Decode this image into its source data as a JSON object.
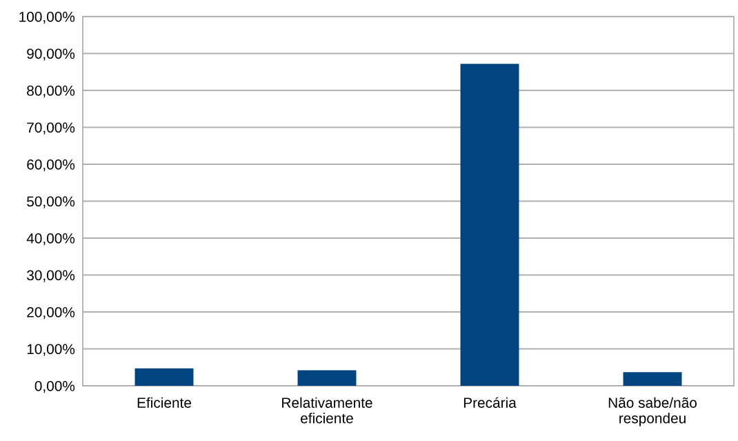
{
  "chart_data": {
    "type": "bar",
    "categories": [
      "Eficiente",
      "Relativamente\neficiente",
      "Precária",
      "Não sabe/não\nrespondeu"
    ],
    "values": [
      4.7,
      4.2,
      87.2,
      3.7
    ],
    "color": "#00457f",
    "ylim": [
      0,
      100
    ],
    "yticks": [
      {
        "value": 0,
        "label": "0,00%"
      },
      {
        "value": 10,
        "label": "10,00%"
      },
      {
        "value": 20,
        "label": "20,00%"
      },
      {
        "value": 30,
        "label": "30,00%"
      },
      {
        "value": 40,
        "label": "40,00%"
      },
      {
        "value": 50,
        "label": "50,00%"
      },
      {
        "value": 60,
        "label": "60,00%"
      },
      {
        "value": 70,
        "label": "70,00%"
      },
      {
        "value": 80,
        "label": "80,00%"
      },
      {
        "value": 90,
        "label": "90,00%"
      },
      {
        "value": 100,
        "label": "100,00%"
      }
    ],
    "grid": "y",
    "legend": false
  }
}
